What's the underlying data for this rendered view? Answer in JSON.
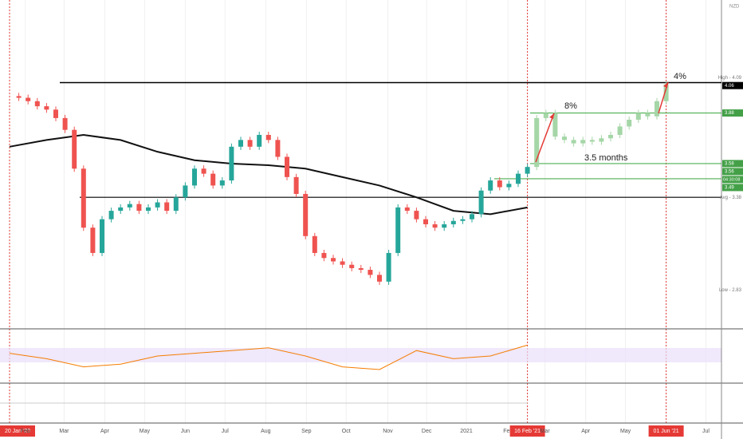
{
  "chart_data": {
    "type": "candlestick",
    "currency": "NZD",
    "ylim": [
      2.6,
      4.55
    ],
    "closes": [
      3.98,
      3.97,
      3.95,
      3.92,
      3.9,
      3.85,
      3.78,
      3.55,
      3.2,
      3.05,
      3.25,
      3.3,
      3.32,
      3.34,
      3.3,
      3.32,
      3.35,
      3.3,
      3.38,
      3.45,
      3.55,
      3.52,
      3.45,
      3.48,
      3.68,
      3.72,
      3.68,
      3.75,
      3.72,
      3.62,
      3.5,
      3.4,
      3.15,
      3.05,
      3.02,
      3.0,
      2.98,
      2.96,
      2.95,
      2.92,
      2.88,
      3.05,
      3.32,
      3.3,
      3.25,
      3.22,
      3.2,
      3.22,
      3.24,
      3.25,
      3.28,
      3.42,
      3.48,
      3.44,
      3.46,
      3.52,
      3.56
    ],
    "projection": [
      3.85,
      3.88,
      3.74,
      3.72,
      3.7,
      3.72,
      3.71,
      3.73,
      3.75,
      3.8,
      3.84,
      3.88,
      3.86,
      3.95,
      4.05
    ],
    "ma200": [
      3.68,
      3.72,
      3.75,
      3.72,
      3.65,
      3.6,
      3.58,
      3.57,
      3.55,
      3.5,
      3.45,
      3.38,
      3.3,
      3.28,
      3.32
    ],
    "rsi": [
      55,
      45,
      30,
      35,
      50,
      55,
      60,
      65,
      50,
      30,
      25,
      60,
      45,
      50,
      70
    ],
    "up_color": "#26a69a",
    "down_color": "#ef5350",
    "projection_color": "#a5d6a7",
    "price_labels": [
      {
        "value": 4.09,
        "label": "High - 4.09"
      },
      4.06,
      3.88,
      3.58,
      3.56,
      3.49,
      {
        "value": 3.38,
        "label": "Avg - 3.38"
      },
      {
        "value": 2.83,
        "label": "Low - 2.83"
      }
    ],
    "countdown": "04:30:08",
    "xticks": [
      {
        "value": 0,
        "label": "20 Jan '20"
      },
      {
        "value": 1.7,
        "label": "Feb"
      },
      {
        "value": 5.9,
        "label": "Mar"
      },
      {
        "value": 10.3,
        "label": "Apr"
      },
      {
        "value": 14.6,
        "label": "May"
      },
      {
        "value": 19,
        "label": "Jun"
      },
      {
        "value": 23.3,
        "label": "Jul"
      },
      {
        "value": 27.7,
        "label": "Aug"
      },
      {
        "value": 32.1,
        "label": "Sep"
      },
      {
        "value": 36.4,
        "label": "Oct"
      },
      {
        "value": 40.9,
        "label": "Nov"
      },
      {
        "value": 45.1,
        "label": "Dec"
      },
      {
        "value": 49.4,
        "label": "2021"
      },
      {
        "value": 53.9,
        "label": "Feb"
      },
      {
        "value": 56,
        "label": "16 Feb '21"
      },
      {
        "value": 57.9,
        "label": "Mar"
      },
      {
        "value": 62.3,
        "label": "Apr"
      },
      {
        "value": 66.6,
        "label": "May"
      },
      {
        "value": 71,
        "label": "01 Jun '21"
      },
      {
        "value": 75.3,
        "label": "Jul"
      }
    ],
    "annotations": [
      "8%",
      "4%",
      "3.5 months"
    ]
  }
}
